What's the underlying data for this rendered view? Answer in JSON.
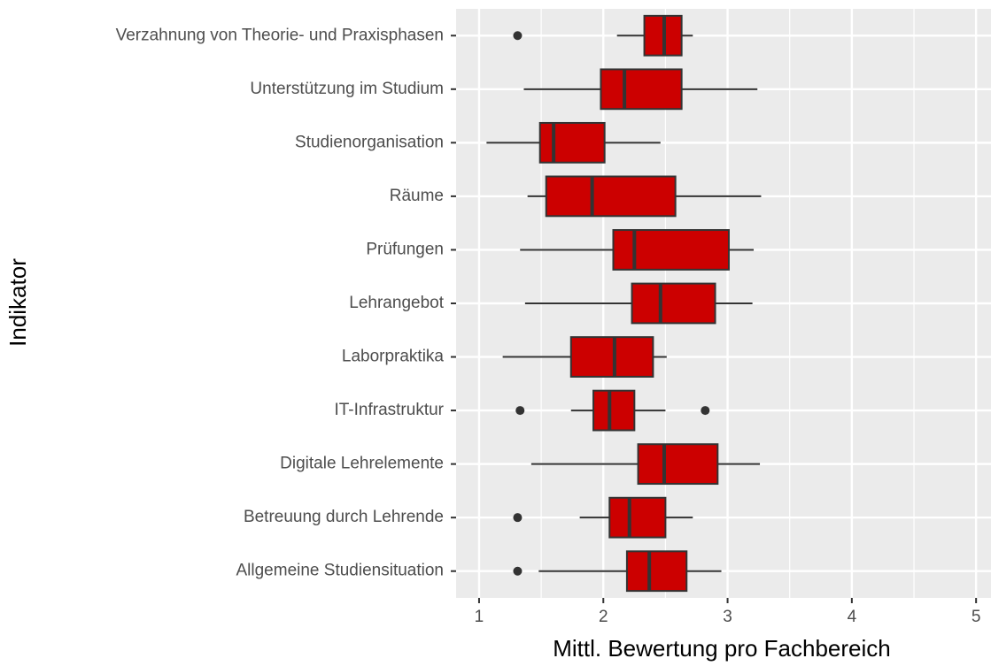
{
  "chart_data": {
    "type": "boxplot",
    "orientation": "horizontal",
    "x_label": "Mittl. Bewertung pro Fachbereich",
    "y_label": "Indikator",
    "categories": [
      "Verzahnung von Theorie- und Praxisphasen",
      "Unterstützung im Studium",
      "Studienorganisation",
      "Räume",
      "Prüfungen",
      "Lehrangebot",
      "Laborpraktika",
      "IT-Infrastruktur",
      "Digitale Lehrelemente",
      "Betreuung durch Lehrende",
      "Allgemeine Studiensituation"
    ],
    "boxes": [
      {
        "low": 2.11,
        "q1": 2.33,
        "median": 2.49,
        "q3": 2.63,
        "high": 2.72,
        "outliers": [
          1.31
        ]
      },
      {
        "low": 1.36,
        "q1": 1.98,
        "median": 2.17,
        "q3": 2.63,
        "high": 3.24,
        "outliers": []
      },
      {
        "low": 1.06,
        "q1": 1.49,
        "median": 1.6,
        "q3": 2.01,
        "high": 2.46,
        "outliers": []
      },
      {
        "low": 1.39,
        "q1": 1.54,
        "median": 1.91,
        "q3": 2.58,
        "high": 3.27,
        "outliers": []
      },
      {
        "low": 1.33,
        "q1": 2.08,
        "median": 2.25,
        "q3": 3.01,
        "high": 3.21,
        "outliers": []
      },
      {
        "low": 1.37,
        "q1": 2.23,
        "median": 2.46,
        "q3": 2.9,
        "high": 3.2,
        "outliers": []
      },
      {
        "low": 1.19,
        "q1": 1.74,
        "median": 2.09,
        "q3": 2.4,
        "high": 2.51,
        "outliers": []
      },
      {
        "low": 1.74,
        "q1": 1.92,
        "median": 2.05,
        "q3": 2.25,
        "high": 2.5,
        "outliers": [
          1.33,
          2.82
        ]
      },
      {
        "low": 1.42,
        "q1": 2.28,
        "median": 2.49,
        "q3": 2.92,
        "high": 3.26,
        "outliers": []
      },
      {
        "low": 1.81,
        "q1": 2.05,
        "median": 2.21,
        "q3": 2.5,
        "high": 2.72,
        "outliers": [
          1.31
        ]
      },
      {
        "low": 1.48,
        "q1": 2.19,
        "median": 2.37,
        "q3": 2.67,
        "high": 2.95,
        "outliers": [
          1.31
        ]
      }
    ],
    "color": "#cc0000",
    "line_color": "#333333",
    "xlim": [
      0.815,
      5.12
    ],
    "xticks": [
      1,
      2,
      3,
      4,
      5
    ],
    "grid": true
  }
}
